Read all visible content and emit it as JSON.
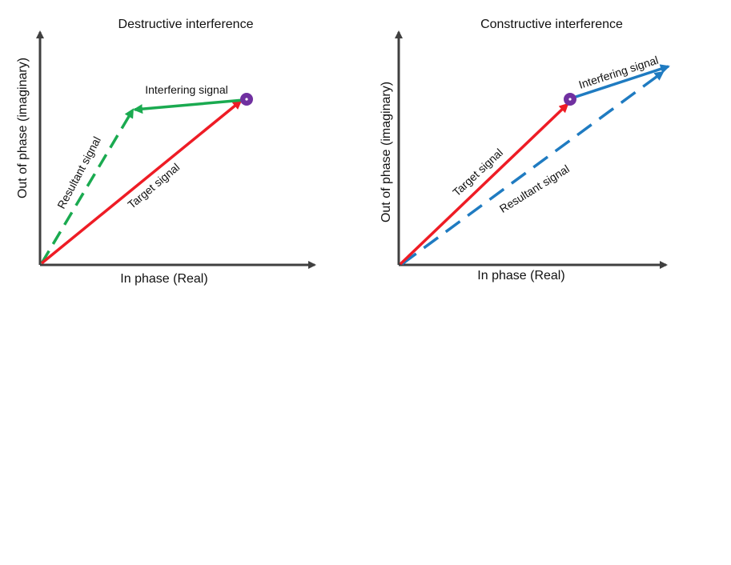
{
  "colors": {
    "axis": "#404040",
    "target": "#ee1c25",
    "destructive_interfering": "#1aaa50",
    "destructive_resultant": "#1aaa50",
    "constructive_interfering": "#1f7bc1",
    "constructive_resultant": "#1f7bc1",
    "dot": "#7030a0"
  },
  "diagrams": [
    {
      "title": "Destructive interference",
      "x_axis_label": "In phase (Real)",
      "y_axis_label": "Out of phase (imaginary)",
      "target_label": "Target signal",
      "interfering_label": "Interfering signal",
      "resultant_label": "Resultant signal"
    },
    {
      "title": "Constructive interference",
      "x_axis_label": "In phase (Real)",
      "y_axis_label": "Out of phase (imaginary)",
      "target_label": "Target signal",
      "interfering_label": "Interfering signal",
      "resultant_label": "Resultant signal"
    }
  ]
}
